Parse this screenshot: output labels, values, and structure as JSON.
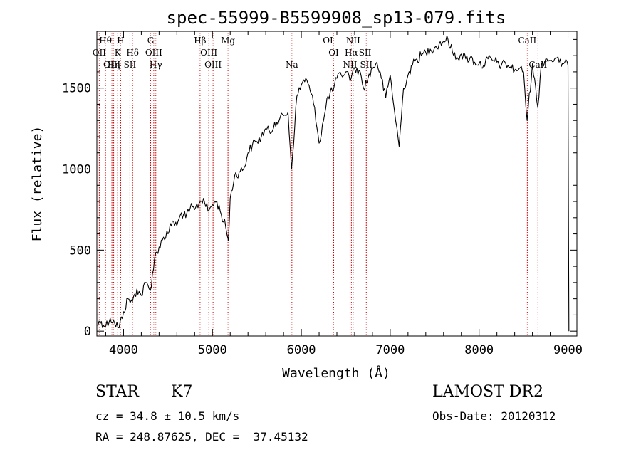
{
  "chart_data": {
    "type": "line",
    "title": "spec-55999-B5599908_sp13-079.fits",
    "xlabel": "Wavelength (Å)",
    "ylabel": "Flux (relative)",
    "xlim": [
      3700,
      9100
    ],
    "ylim": [
      -30,
      1850
    ],
    "x_ticks": [
      4000,
      5000,
      6000,
      7000,
      8000,
      9000
    ],
    "y_ticks": [
      0,
      500,
      1000,
      1500
    ],
    "line_color": "#000000",
    "marker_color": "#cc0000",
    "series": [
      {
        "x": [
          3700,
          3750,
          3800,
          3850,
          3900,
          3950,
          4000,
          4050,
          4100,
          4150,
          4200,
          4250,
          4300,
          4350,
          4400,
          4450,
          4500,
          4550,
          4600,
          4650,
          4700,
          4750,
          4800,
          4850,
          4900,
          4950,
          5000,
          5050,
          5100,
          5150,
          5180,
          5200,
          5250,
          5300,
          5350,
          5400,
          5450,
          5500,
          5550,
          5600,
          5650,
          5700,
          5750,
          5800,
          5850,
          5890,
          5950,
          6000,
          6050,
          6100,
          6150,
          6200,
          6250,
          6300,
          6350,
          6400,
          6450,
          6500,
          6560,
          6600,
          6650,
          6700,
          6750,
          6800,
          6850,
          6900,
          6950,
          7000,
          7050,
          7100,
          7150,
          7200,
          7250,
          7300,
          7350,
          7400,
          7450,
          7500,
          7550,
          7600,
          7650,
          7700,
          7750,
          7800,
          7850,
          7900,
          7950,
          8000,
          8050,
          8100,
          8150,
          8200,
          8250,
          8300,
          8350,
          8400,
          8450,
          8500,
          8540,
          8600,
          8660,
          8700,
          8750,
          8800,
          8850,
          8900,
          8950,
          9000,
          9010
        ],
        "y": [
          40,
          60,
          30,
          80,
          50,
          20,
          120,
          200,
          180,
          260,
          220,
          300,
          250,
          450,
          520,
          580,
          600,
          680,
          650,
          730,
          700,
          760,
          750,
          790,
          820,
          740,
          780,
          800,
          720,
          640,
          560,
          820,
          960,
          980,
          1000,
          1100,
          1150,
          1170,
          1200,
          1250,
          1220,
          1290,
          1300,
          1330,
          1350,
          1000,
          1450,
          1520,
          1560,
          1480,
          1380,
          1160,
          1300,
          1450,
          1480,
          1560,
          1580,
          1600,
          1560,
          1620,
          1610,
          1500,
          1560,
          1620,
          1660,
          1560,
          1440,
          1580,
          1350,
          1140,
          1500,
          1580,
          1640,
          1680,
          1700,
          1720,
          1740,
          1750,
          1770,
          1790,
          1800,
          1720,
          1690,
          1710,
          1680,
          1690,
          1660,
          1650,
          1640,
          1680,
          1670,
          1660,
          1640,
          1650,
          1630,
          1610,
          1620,
          1600,
          1300,
          1650,
          1380,
          1650,
          1680,
          1670,
          1680,
          1660,
          1650,
          1640,
          0
        ]
      }
    ],
    "spectral_lines": [
      {
        "label": "OII",
        "wavelength": 3727,
        "row": 1
      },
      {
        "label": "Hθ",
        "wavelength": 3797,
        "row": 0
      },
      {
        "label": "OIII",
        "wavelength": 3869,
        "row": 2
      },
      {
        "label": "Hη",
        "wavelength": 3889,
        "row": 2
      },
      {
        "label": "K",
        "wavelength": 3934,
        "row": 1
      },
      {
        "label": "H",
        "wavelength": 3968,
        "row": 0
      },
      {
        "label": "SII",
        "wavelength": 4072,
        "row": 2
      },
      {
        "label": "Hδ",
        "wavelength": 4102,
        "row": 1
      },
      {
        "label": "G",
        "wavelength": 4305,
        "row": 0
      },
      {
        "label": "OIII",
        "wavelength": 4340,
        "row": 1
      },
      {
        "label": "Hγ",
        "wavelength": 4363,
        "row": 2
      },
      {
        "label": "Hβ",
        "wavelength": 4861,
        "row": 0
      },
      {
        "label": "OIII",
        "wavelength": 4959,
        "row": 1
      },
      {
        "label": "OIII",
        "wavelength": 5007,
        "row": 2
      },
      {
        "label": "Mg",
        "wavelength": 5175,
        "row": 0
      },
      {
        "label": "Na",
        "wavelength": 5894,
        "row": 2
      },
      {
        "label": "OI",
        "wavelength": 6300,
        "row": 0
      },
      {
        "label": "OI",
        "wavelength": 6364,
        "row": 1
      },
      {
        "label": "NII",
        "wavelength": 6548,
        "row": 2
      },
      {
        "label": "Hα",
        "wavelength": 6563,
        "row": 1
      },
      {
        "label": "NII",
        "wavelength": 6583,
        "row": 0
      },
      {
        "label": "SII",
        "wavelength": 6717,
        "row": 1
      },
      {
        "label": "SII",
        "wavelength": 6731,
        "row": 2
      },
      {
        "label": "CaII",
        "wavelength": 8542,
        "row": 0
      },
      {
        "label": "CaII",
        "wavelength": 8662,
        "row": 2
      }
    ]
  },
  "info": {
    "class_type": "STAR",
    "subclass": "K7",
    "survey": "LAMOST DR2",
    "cz": "cz = 34.8 ± 10.5 km/s",
    "obs_date": "Obs-Date: 20120312",
    "coords": "RA = 248.87625, DEC =  37.45132"
  }
}
